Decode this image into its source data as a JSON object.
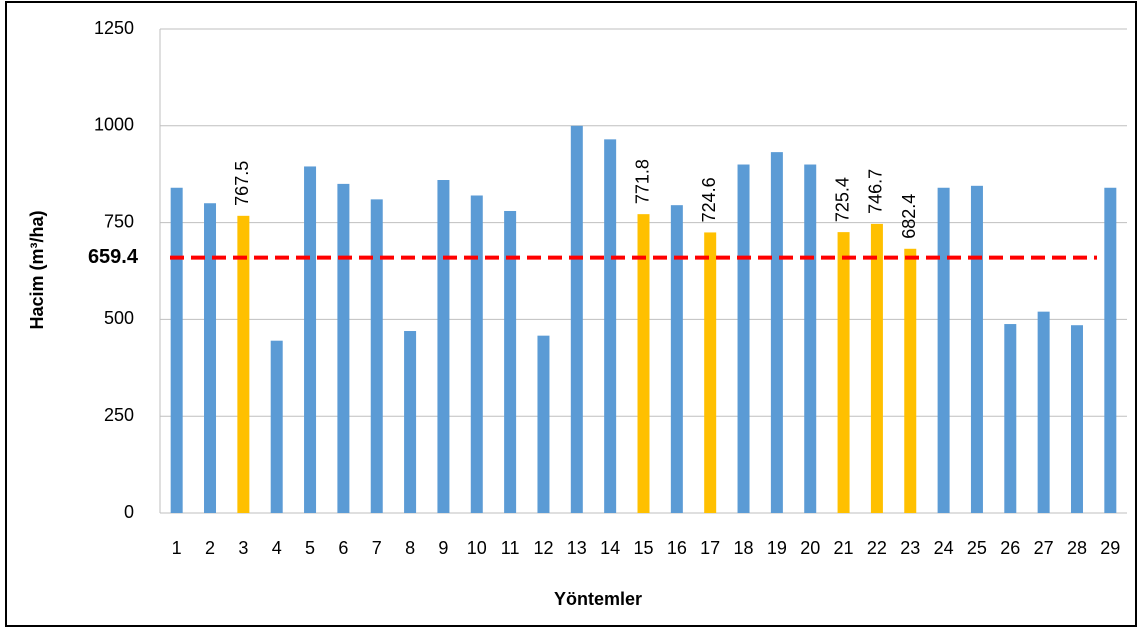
{
  "chart_data": {
    "type": "bar",
    "x_label": "Yöntemler",
    "y_label": "Hacim (m³/ha)",
    "categories": [
      "1",
      "2",
      "3",
      "4",
      "5",
      "6",
      "7",
      "8",
      "9",
      "10",
      "11",
      "12",
      "13",
      "14",
      "15",
      "16",
      "17",
      "18",
      "19",
      "20",
      "21",
      "22",
      "23",
      "24",
      "25",
      "26",
      "27",
      "28",
      "29"
    ],
    "values": [
      840,
      800,
      767.5,
      445,
      895,
      850,
      810,
      470,
      860,
      820,
      780,
      458,
      1000,
      965,
      771.8,
      795,
      724.6,
      900,
      932,
      900,
      725.4,
      746.7,
      682.4,
      840,
      845,
      488,
      520,
      485,
      840
    ],
    "value_labels": [
      null,
      null,
      "767.5",
      null,
      null,
      null,
      null,
      null,
      null,
      null,
      null,
      null,
      null,
      null,
      "771.8",
      null,
      "724.6",
      null,
      null,
      null,
      "725.4",
      "746.7",
      "682.4",
      null,
      null,
      null,
      null,
      null,
      null
    ],
    "colors": [
      "#5b9bd5",
      "#5b9bd5",
      "#ffc000",
      "#5b9bd5",
      "#5b9bd5",
      "#5b9bd5",
      "#5b9bd5",
      "#5b9bd5",
      "#5b9bd5",
      "#5b9bd5",
      "#5b9bd5",
      "#5b9bd5",
      "#5b9bd5",
      "#5b9bd5",
      "#ffc000",
      "#5b9bd5",
      "#ffc000",
      "#5b9bd5",
      "#5b9bd5",
      "#5b9bd5",
      "#ffc000",
      "#ffc000",
      "#ffc000",
      "#5b9bd5",
      "#5b9bd5",
      "#5b9bd5",
      "#5b9bd5",
      "#5b9bd5",
      "#5b9bd5"
    ],
    "reference_line": {
      "value": 659.4,
      "color": "#ff0000"
    },
    "ylim": [
      0,
      1250
    ],
    "yticks": [
      0,
      250,
      500,
      750,
      1000,
      1250
    ],
    "grid": true
  }
}
